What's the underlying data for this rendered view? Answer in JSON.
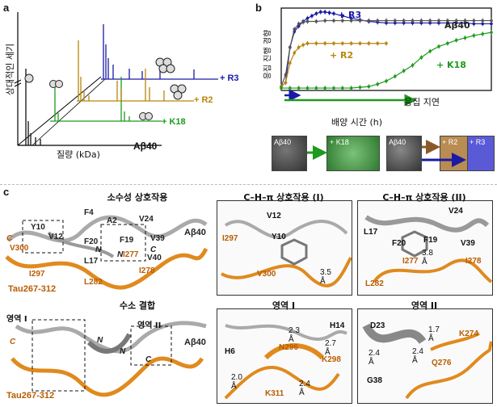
{
  "panel_a": {
    "label": "a",
    "ylabel": "상대적인 세기",
    "xlabel": "질량 (kDa)",
    "series_labels": [
      "+ R3",
      "+ R2",
      "+ K18",
      "Aβ40"
    ],
    "colors": {
      "R3": "#1a1aa6",
      "R2": "#b8860b",
      "K18": "#1d9a1d",
      "Ab": "#111111"
    }
  },
  "panel_b": {
    "label": "b",
    "ylabel": "응집 진행 경향",
    "xlabel": "배양 시간 (h)",
    "arrow_label": "응집 지연",
    "legend": [
      "+ R3",
      "Aβ40",
      "+ R2",
      "+ K18"
    ],
    "tem_labels": [
      "Aβ40",
      "+ K18",
      "Aβ40",
      "+ R2",
      "+ R3"
    ]
  },
  "chart_data": {
    "type": "line",
    "title": "",
    "xlabel": "배양 시간 (h)",
    "ylabel": "응집 진행 경향",
    "series": [
      {
        "name": "+ R3",
        "color": "#1a1aa6",
        "x": [
          0,
          1,
          2,
          3,
          4,
          5,
          6,
          7,
          8,
          9,
          10,
          11,
          12,
          14,
          16,
          18,
          20,
          22,
          24,
          26,
          28,
          30,
          32,
          34,
          36,
          38,
          40,
          42,
          44,
          46,
          48
        ],
        "values": [
          0.05,
          0.1,
          0.55,
          0.75,
          0.82,
          0.88,
          0.92,
          0.95,
          0.98,
          1.0,
          1.0,
          0.99,
          0.98,
          0.95,
          0.92,
          0.9,
          0.88,
          0.87,
          0.86,
          0.86,
          0.86,
          0.86,
          0.86,
          0.86,
          0.86,
          0.86,
          0.86,
          0.86,
          0.85,
          0.85,
          0.85
        ]
      },
      {
        "name": "Aβ40",
        "color": "#555555",
        "x": [
          0,
          1,
          2,
          3,
          4,
          5,
          6,
          8,
          10,
          12,
          14,
          16,
          18,
          20,
          22,
          24,
          26,
          28,
          30,
          32,
          34,
          36,
          38,
          40,
          42,
          44,
          46,
          48
        ],
        "values": [
          0.05,
          0.2,
          0.55,
          0.78,
          0.85,
          0.87,
          0.88,
          0.88,
          0.89,
          0.89,
          0.89,
          0.89,
          0.89,
          0.89,
          0.89,
          0.89,
          0.89,
          0.89,
          0.89,
          0.89,
          0.89,
          0.89,
          0.89,
          0.89,
          0.89,
          0.89,
          0.89,
          0.89
        ]
      },
      {
        "name": "+ R2",
        "color": "#b8860b",
        "x": [
          0,
          1,
          2,
          3,
          4,
          5,
          6,
          8,
          10,
          12,
          14,
          16,
          18,
          20,
          22,
          24
        ],
        "values": [
          0.05,
          0.1,
          0.35,
          0.48,
          0.55,
          0.58,
          0.6,
          0.6,
          0.6,
          0.6,
          0.6,
          0.6,
          0.6,
          0.6,
          0.6,
          0.6
        ]
      },
      {
        "name": "+ K18",
        "color": "#1d9a1d",
        "x": [
          0,
          2,
          4,
          6,
          8,
          10,
          12,
          14,
          16,
          18,
          20,
          22,
          24,
          26,
          28,
          30,
          32,
          34,
          36,
          38,
          40,
          42,
          44,
          46,
          48
        ],
        "values": [
          0.03,
          0.03,
          0.03,
          0.03,
          0.03,
          0.03,
          0.03,
          0.03,
          0.03,
          0.04,
          0.05,
          0.08,
          0.12,
          0.18,
          0.25,
          0.32,
          0.42,
          0.5,
          0.56,
          0.6,
          0.64,
          0.67,
          0.7,
          0.72,
          0.74
        ]
      }
    ],
    "xlim": [
      0,
      48
    ],
    "ylim": [
      0,
      1.05
    ],
    "legend_position": "inside-labels",
    "grid": false
  },
  "panel_c": {
    "label": "c",
    "titles": {
      "hydrophobic": "소수성 상호작용",
      "hbond": "수소 결합",
      "ch_pi_1": "C–H–π 상호작용 (I)",
      "ch_pi_2": "C–H–π 상호작용 (II)",
      "region_1": "영역 I",
      "region_2": "영역 II"
    },
    "overview_top_labels": [
      "F4",
      "A2",
      "V24",
      "Y10",
      "V12",
      "F20",
      "F19",
      "V39",
      "V40",
      "L17",
      "I297",
      "V300",
      "L282",
      "I277",
      "I278",
      "N",
      "N",
      "C",
      "C",
      "Aβ40",
      "Tau267-312"
    ],
    "overview_bottom_labels": [
      "영역 I",
      "영역 II",
      "N",
      "N",
      "C",
      "C",
      "Aβ40",
      "Tau267-312"
    ],
    "chpi1_labels": [
      "V12",
      "Y10",
      "I297",
      "V300",
      "3.5 Å"
    ],
    "chpi2_labels": [
      "V24",
      "L17",
      "F20",
      "F19",
      "V39",
      "3.8 Å",
      "I277",
      "I278",
      "L282"
    ],
    "region1_labels": [
      "H14",
      "2.3 Å",
      "N296",
      "2.7 Å",
      "K298",
      "H6",
      "2.0 Å",
      "2.4 Å",
      "K311"
    ],
    "region2_labels": [
      "D23",
      "1.7 Å",
      "K274",
      "2.4 Å",
      "2.4 Å",
      "Q276",
      "G38"
    ]
  }
}
